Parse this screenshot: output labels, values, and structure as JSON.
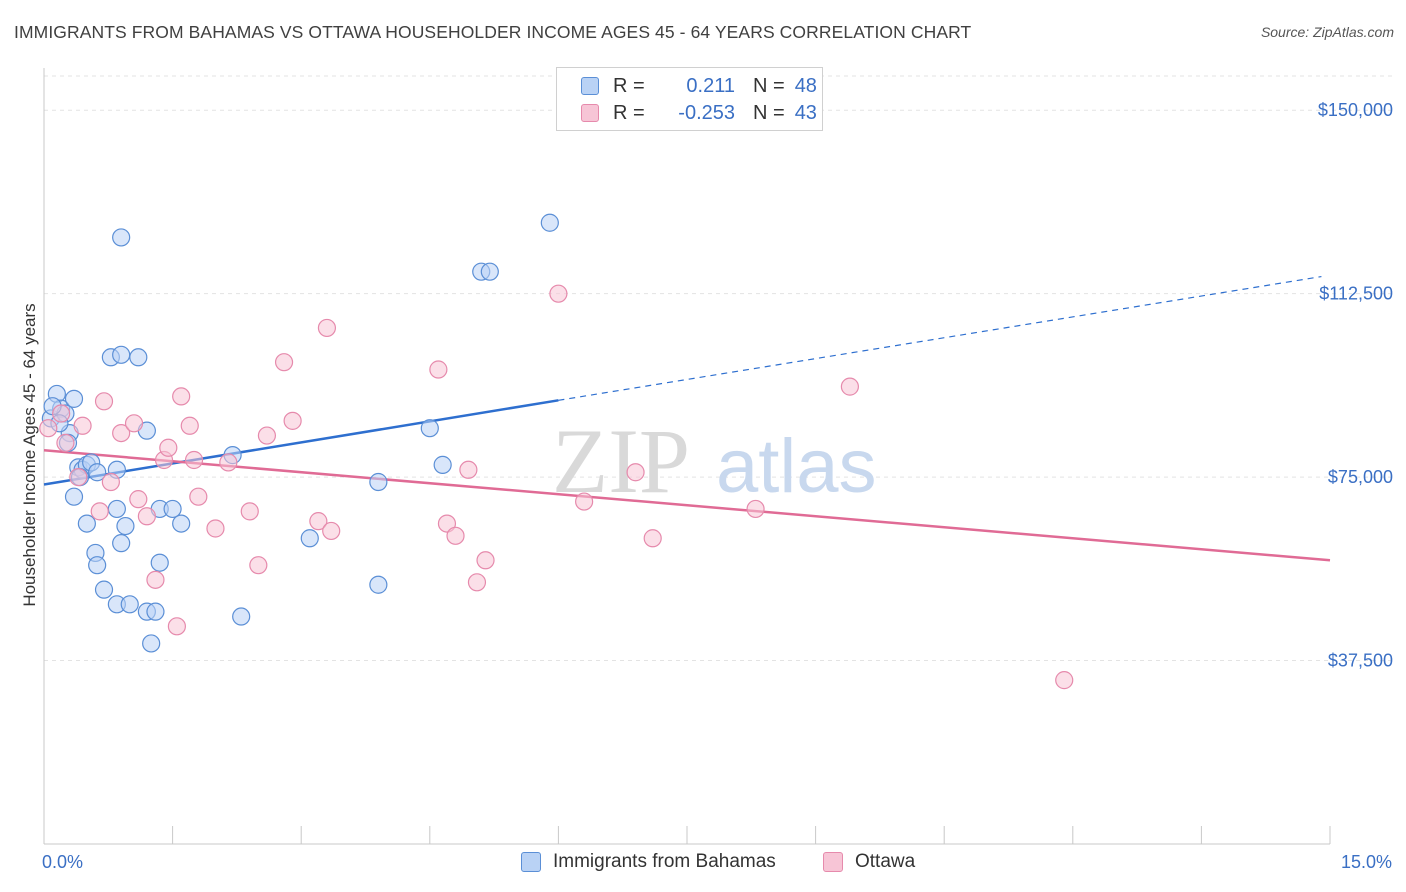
{
  "title": "IMMIGRANTS FROM BAHAMAS VS OTTAWA HOUSEHOLDER INCOME AGES 45 - 64 YEARS CORRELATION CHART",
  "source": "Source: ZipAtlas.com",
  "legend": {
    "r_label": "R =",
    "n_label": "N =",
    "rows": [
      {
        "r": "0.211",
        "n": "48"
      },
      {
        "r": "-0.253",
        "n": "43"
      }
    ]
  },
  "colors": {
    "blue_fill": "#b9d2f5",
    "blue_stroke": "#5b8fd6",
    "blue_line": "#2e6fcf",
    "pink_fill": "#f7c5d6",
    "pink_stroke": "#e68aac",
    "pink_line": "#e06b95",
    "tick_text": "#3a6fc4"
  },
  "chart_data": {
    "type": "scatter",
    "title": "IMMIGRANTS FROM BAHAMAS VS OTTAWA HOUSEHOLDER INCOME AGES 45 - 64 YEARS CORRELATION CHART",
    "xlabel": "",
    "ylabel": "Householder Income Ages 45 - 64 years",
    "xlim": [
      0,
      15
    ],
    "ylim": [
      0,
      157000
    ],
    "x_tick_labels": [
      "0.0%",
      "15.0%"
    ],
    "y_ticks": [
      37500,
      75000,
      112500,
      150000
    ],
    "y_tick_labels": [
      "$37,500",
      "$75,000",
      "$112,500",
      "$150,000"
    ],
    "grid": true,
    "legend_position": "top-center",
    "watermark": {
      "zip": "ZIP",
      "atlas": "atlas"
    },
    "series": [
      {
        "name": "Immigrants from Bahamas",
        "trend": {
          "x": [
            0.0,
            6.0
          ],
          "y": [
            73500,
            90700
          ],
          "dashed_extension": {
            "x": [
              6.0,
              14.9
            ],
            "y": [
              90700,
              116000
            ]
          }
        },
        "points": [
          [
            0.08,
            87000
          ],
          [
            0.15,
            92000
          ],
          [
            0.2,
            89000
          ],
          [
            0.25,
            88000
          ],
          [
            0.3,
            84000
          ],
          [
            0.35,
            91000
          ],
          [
            0.1,
            89500
          ],
          [
            0.28,
            82000
          ],
          [
            0.4,
            77000
          ],
          [
            0.45,
            76500
          ],
          [
            0.5,
            77500
          ],
          [
            0.55,
            78000
          ],
          [
            0.35,
            71000
          ],
          [
            0.42,
            75000
          ],
          [
            0.62,
            76000
          ],
          [
            0.85,
            76500
          ],
          [
            0.5,
            65500
          ],
          [
            0.85,
            68500
          ],
          [
            0.6,
            59500
          ],
          [
            0.62,
            57000
          ],
          [
            0.7,
            52000
          ],
          [
            0.85,
            49000
          ],
          [
            0.9,
            61500
          ],
          [
            0.95,
            65000
          ],
          [
            1.0,
            49000
          ],
          [
            1.2,
            47500
          ],
          [
            1.35,
            57500
          ],
          [
            1.35,
            68500
          ],
          [
            1.3,
            47500
          ],
          [
            1.5,
            68500
          ],
          [
            1.6,
            65500
          ],
          [
            1.25,
            41000
          ],
          [
            0.78,
            99500
          ],
          [
            0.9,
            100000
          ],
          [
            1.1,
            99500
          ],
          [
            1.2,
            84500
          ],
          [
            0.9,
            124000
          ],
          [
            2.2,
            79500
          ],
          [
            2.3,
            46500
          ],
          [
            3.1,
            62500
          ],
          [
            3.9,
            74000
          ],
          [
            3.9,
            53000
          ],
          [
            4.5,
            85000
          ],
          [
            4.65,
            77500
          ],
          [
            5.1,
            117000
          ],
          [
            5.2,
            117000
          ],
          [
            5.9,
            127000
          ],
          [
            0.18,
            86000
          ]
        ]
      },
      {
        "name": "Ottawa",
        "trend": {
          "x": [
            0.0,
            15.0
          ],
          "y": [
            80500,
            58000
          ]
        },
        "points": [
          [
            0.05,
            85000
          ],
          [
            0.2,
            88000
          ],
          [
            0.25,
            82000
          ],
          [
            0.4,
            75000
          ],
          [
            0.45,
            85500
          ],
          [
            0.7,
            90500
          ],
          [
            0.65,
            68000
          ],
          [
            0.78,
            74000
          ],
          [
            0.9,
            84000
          ],
          [
            1.05,
            86000
          ],
          [
            1.1,
            70500
          ],
          [
            1.2,
            67000
          ],
          [
            1.3,
            54000
          ],
          [
            1.4,
            78500
          ],
          [
            1.45,
            81000
          ],
          [
            1.6,
            91500
          ],
          [
            1.7,
            85500
          ],
          [
            1.75,
            78500
          ],
          [
            1.8,
            71000
          ],
          [
            2.0,
            64500
          ],
          [
            2.15,
            78000
          ],
          [
            2.4,
            68000
          ],
          [
            2.5,
            57000
          ],
          [
            2.6,
            83500
          ],
          [
            2.8,
            98500
          ],
          [
            2.9,
            86500
          ],
          [
            3.2,
            66000
          ],
          [
            3.35,
            64000
          ],
          [
            3.3,
            105500
          ],
          [
            4.6,
            97000
          ],
          [
            4.7,
            65500
          ],
          [
            4.8,
            63000
          ],
          [
            4.95,
            76500
          ],
          [
            5.15,
            58000
          ],
          [
            5.05,
            53500
          ],
          [
            6.0,
            112500
          ],
          [
            6.3,
            70000
          ],
          [
            6.9,
            76000
          ],
          [
            7.1,
            62500
          ],
          [
            8.3,
            68500
          ],
          [
            9.4,
            93500
          ],
          [
            11.9,
            33500
          ],
          [
            1.55,
            44500
          ]
        ]
      }
    ]
  }
}
